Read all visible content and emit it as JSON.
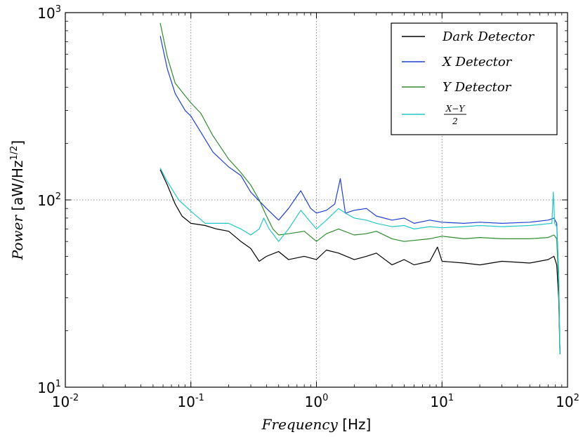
{
  "chart_data": {
    "type": "line",
    "xscale": "log",
    "yscale": "log",
    "xlim": [
      0.01,
      100
    ],
    "ylim": [
      10,
      1000
    ],
    "grid": true,
    "xlabel": {
      "italic": "Frequency",
      "unit": " [Hz]"
    },
    "ylabel": {
      "italic": "Power",
      "unit_prefix": " [aW/Hz",
      "unit_exp": "1/2",
      "unit_suffix": "]"
    },
    "x_ticks": [
      {
        "value": 0.01,
        "base": "10",
        "exp": "-2"
      },
      {
        "value": 0.1,
        "base": "10",
        "exp": "-1"
      },
      {
        "value": 1,
        "base": "10",
        "exp": "0"
      },
      {
        "value": 10,
        "base": "10",
        "exp": "1"
      },
      {
        "value": 100,
        "base": "10",
        "exp": "2"
      }
    ],
    "y_ticks": [
      {
        "value": 10,
        "base": "10",
        "exp": "1"
      },
      {
        "value": 100,
        "base": "10",
        "exp": "2"
      },
      {
        "value": 1000,
        "base": "10",
        "exp": "3"
      }
    ],
    "legend_position": "top-right",
    "series": [
      {
        "name": "Dark Detector",
        "color": "#000000",
        "points": [
          [
            0.057,
            145
          ],
          [
            0.065,
            120
          ],
          [
            0.075,
            95
          ],
          [
            0.085,
            82
          ],
          [
            0.1,
            75
          ],
          [
            0.13,
            73
          ],
          [
            0.16,
            70
          ],
          [
            0.2,
            68
          ],
          [
            0.25,
            60
          ],
          [
            0.3,
            55
          ],
          [
            0.35,
            47
          ],
          [
            0.4,
            50
          ],
          [
            0.5,
            53
          ],
          [
            0.6,
            48
          ],
          [
            0.8,
            50
          ],
          [
            1.0,
            48
          ],
          [
            1.2,
            54
          ],
          [
            1.5,
            52
          ],
          [
            2.0,
            48
          ],
          [
            2.5,
            50
          ],
          [
            3.0,
            52
          ],
          [
            4.0,
            45
          ],
          [
            5.0,
            48
          ],
          [
            6.0,
            45
          ],
          [
            8.0,
            47
          ],
          [
            9.2,
            56
          ],
          [
            10,
            47
          ],
          [
            15,
            46
          ],
          [
            20,
            45
          ],
          [
            30,
            47
          ],
          [
            50,
            46
          ],
          [
            70,
            48
          ],
          [
            78,
            50
          ],
          [
            82,
            45
          ],
          [
            85,
            30
          ],
          [
            87,
            15
          ]
        ]
      },
      {
        "name": "X Detector",
        "color": "#1f3fcf",
        "points": [
          [
            0.057,
            750
          ],
          [
            0.065,
            500
          ],
          [
            0.075,
            370
          ],
          [
            0.09,
            300
          ],
          [
            0.1,
            280
          ],
          [
            0.12,
            230
          ],
          [
            0.15,
            180
          ],
          [
            0.2,
            150
          ],
          [
            0.25,
            135
          ],
          [
            0.3,
            110
          ],
          [
            0.4,
            90
          ],
          [
            0.5,
            78
          ],
          [
            0.6,
            90
          ],
          [
            0.75,
            112
          ],
          [
            0.9,
            90
          ],
          [
            1.0,
            85
          ],
          [
            1.2,
            88
          ],
          [
            1.4,
            95
          ],
          [
            1.55,
            130
          ],
          [
            1.7,
            85
          ],
          [
            2.0,
            88
          ],
          [
            2.5,
            90
          ],
          [
            3.0,
            82
          ],
          [
            4.0,
            78
          ],
          [
            5.0,
            80
          ],
          [
            6.0,
            75
          ],
          [
            8.0,
            78
          ],
          [
            10,
            76
          ],
          [
            15,
            75
          ],
          [
            20,
            76
          ],
          [
            30,
            75
          ],
          [
            50,
            76
          ],
          [
            70,
            78
          ],
          [
            78,
            80
          ],
          [
            82,
            75
          ],
          [
            85,
            40
          ],
          [
            87,
            15
          ]
        ]
      },
      {
        "name": "Y Detector",
        "color": "#2e8b2e",
        "points": [
          [
            0.057,
            880
          ],
          [
            0.065,
            580
          ],
          [
            0.075,
            420
          ],
          [
            0.09,
            360
          ],
          [
            0.1,
            330
          ],
          [
            0.12,
            290
          ],
          [
            0.15,
            220
          ],
          [
            0.2,
            165
          ],
          [
            0.25,
            140
          ],
          [
            0.3,
            120
          ],
          [
            0.35,
            100
          ],
          [
            0.4,
            82
          ],
          [
            0.45,
            70
          ],
          [
            0.5,
            65
          ],
          [
            0.6,
            66
          ],
          [
            0.8,
            68
          ],
          [
            1.0,
            60
          ],
          [
            1.2,
            66
          ],
          [
            1.5,
            70
          ],
          [
            2.0,
            65
          ],
          [
            2.5,
            66
          ],
          [
            3.0,
            68
          ],
          [
            4.0,
            62
          ],
          [
            5.0,
            60
          ],
          [
            8.0,
            62
          ],
          [
            10,
            64
          ],
          [
            15,
            62
          ],
          [
            20,
            63
          ],
          [
            30,
            62
          ],
          [
            50,
            62
          ],
          [
            70,
            63
          ],
          [
            78,
            65
          ],
          [
            82,
            62
          ],
          [
            85,
            35
          ],
          [
            87,
            15
          ]
        ]
      },
      {
        "name": "(X-Y)/2",
        "color": "#26c6c6",
        "points": [
          [
            0.057,
            148
          ],
          [
            0.065,
            125
          ],
          [
            0.08,
            100
          ],
          [
            0.1,
            87
          ],
          [
            0.13,
            75
          ],
          [
            0.2,
            75
          ],
          [
            0.25,
            70
          ],
          [
            0.3,
            65
          ],
          [
            0.35,
            70
          ],
          [
            0.38,
            80
          ],
          [
            0.42,
            70
          ],
          [
            0.5,
            60
          ],
          [
            0.6,
            70
          ],
          [
            0.75,
            88
          ],
          [
            0.9,
            76
          ],
          [
            1.0,
            70
          ],
          [
            1.2,
            78
          ],
          [
            1.5,
            90
          ],
          [
            1.7,
            85
          ],
          [
            2.0,
            80
          ],
          [
            2.5,
            78
          ],
          [
            3.0,
            75
          ],
          [
            4.0,
            72
          ],
          [
            5.0,
            73
          ],
          [
            6.0,
            70
          ],
          [
            8.0,
            72
          ],
          [
            10,
            71
          ],
          [
            15,
            72
          ],
          [
            20,
            73
          ],
          [
            30,
            72
          ],
          [
            50,
            73
          ],
          [
            75,
            75
          ],
          [
            77,
            110
          ],
          [
            79,
            75
          ],
          [
            82,
            72
          ],
          [
            85,
            40
          ],
          [
            87,
            15
          ]
        ]
      }
    ],
    "legend": [
      {
        "kind": "text",
        "label": "Dark Detector",
        "color": "#000000"
      },
      {
        "kind": "text",
        "label": "X Detector",
        "color": "#1f3fcf"
      },
      {
        "kind": "text",
        "label": "Y Detector",
        "color": "#2e8b2e"
      },
      {
        "kind": "fraction",
        "numerator": "X−Y",
        "denominator": "2",
        "color": "#26c6c6"
      }
    ]
  }
}
